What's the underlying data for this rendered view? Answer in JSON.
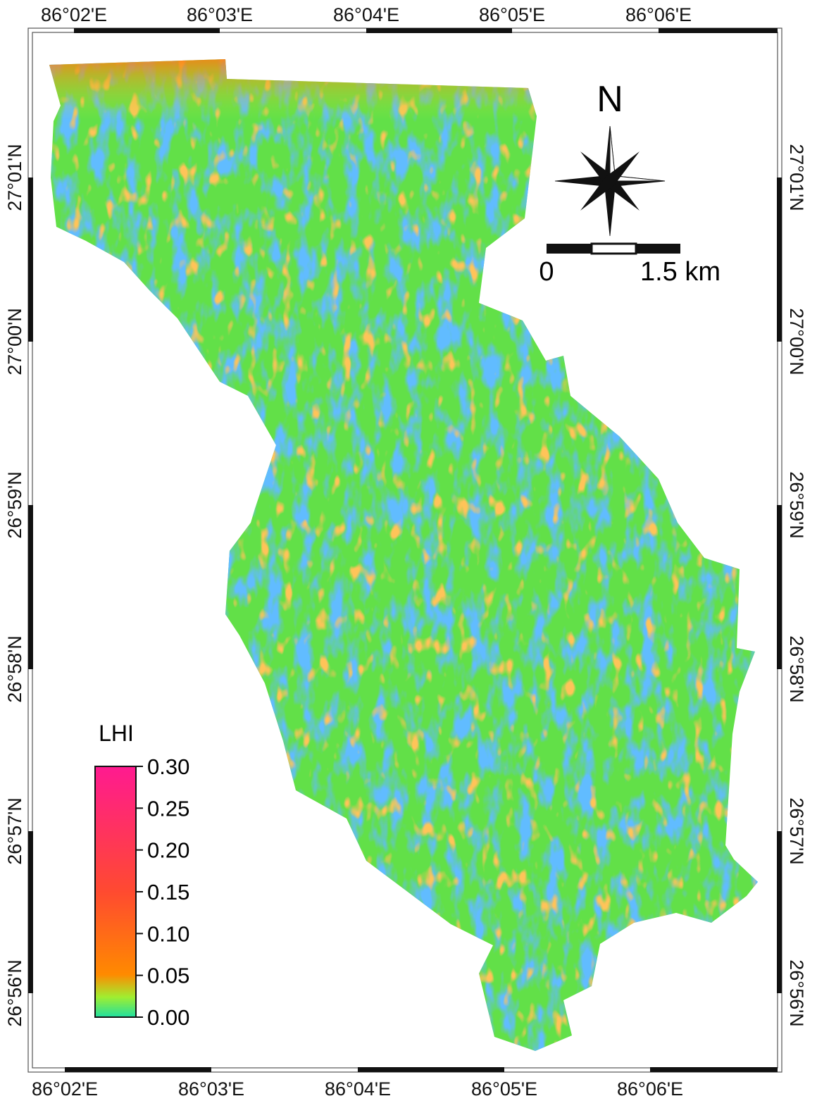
{
  "map": {
    "top_ticks": [
      "86°02'E",
      "86°03'E",
      "86°04'E",
      "86°05'E",
      "86°06'E"
    ],
    "bottom_ticks": [
      "86°02'E",
      "86°03'E",
      "86°04'E",
      "86°05'E",
      "86°06'E"
    ],
    "left_ticks": [
      "27°01'N",
      "27°00'N",
      "26°59'N",
      "26°58'N",
      "26°57'N",
      "26°56'N"
    ],
    "right_ticks": [
      "27°01'N",
      "27°00'N",
      "26°59'N",
      "26°58'N",
      "26°57'N",
      "26°56'N"
    ],
    "north": "N",
    "scale_bar": {
      "start": "0",
      "end": "1.5 km"
    },
    "legend": {
      "title": "LHI",
      "lim": [
        0,
        0.3
      ],
      "ticks": [
        {
          "value": 0,
          "label": "0.00"
        },
        {
          "value": 0.05,
          "label": "0.05"
        },
        {
          "value": 0.1,
          "label": "0.10"
        },
        {
          "value": 0.15,
          "label": "0.15"
        },
        {
          "value": 0.2,
          "label": "0.20"
        },
        {
          "value": 0.25,
          "label": "0.25"
        },
        {
          "value": 0.3,
          "label": "0.30"
        }
      ]
    }
  }
}
